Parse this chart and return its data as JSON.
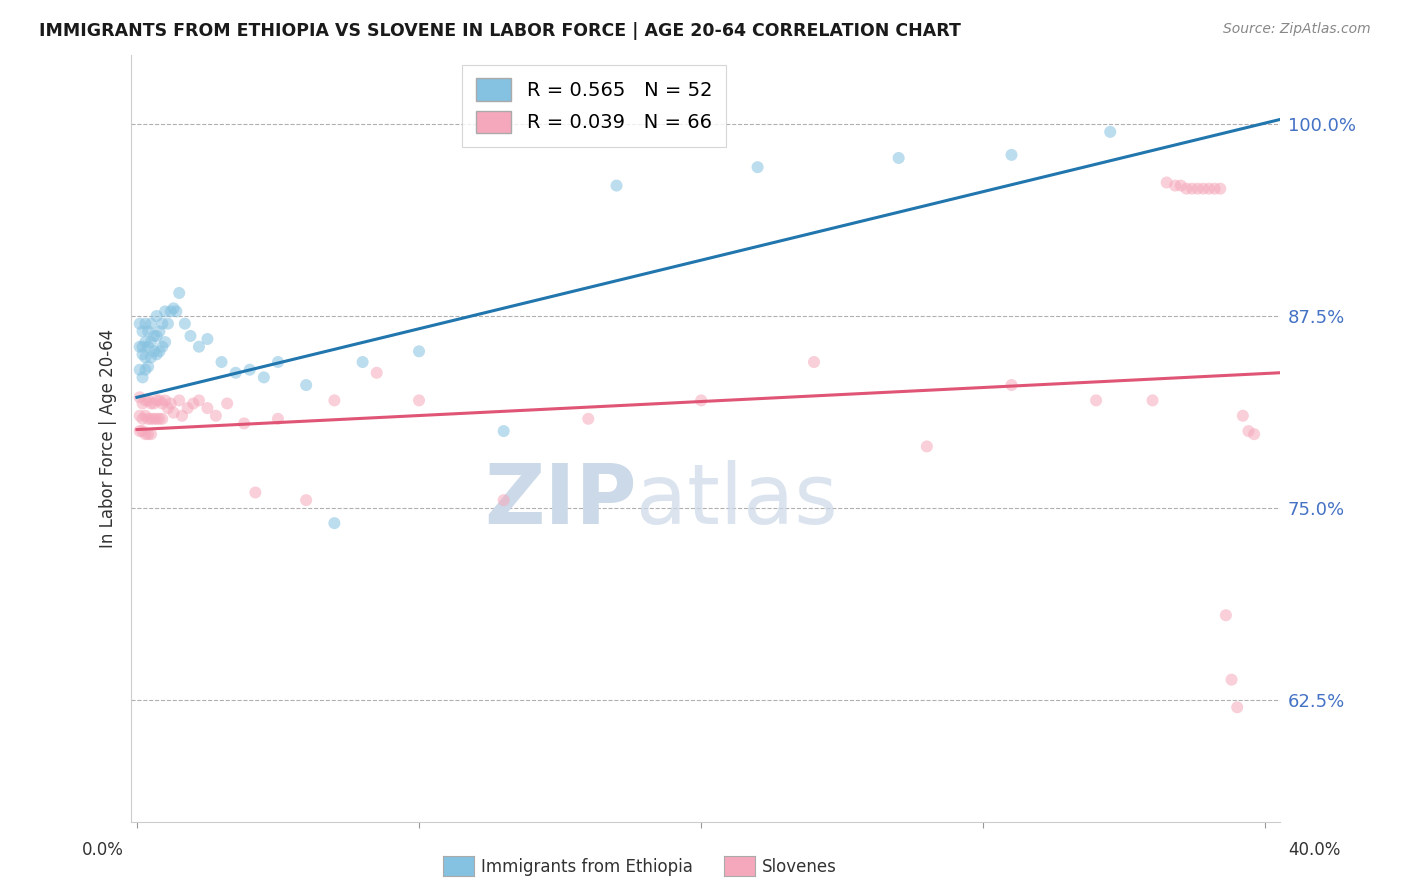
{
  "title": "IMMIGRANTS FROM ETHIOPIA VS SLOVENE IN LABOR FORCE | AGE 20-64 CORRELATION CHART",
  "source_text": "Source: ZipAtlas.com",
  "ylabel": "In Labor Force | Age 20-64",
  "ytick_labels": [
    "100.0%",
    "87.5%",
    "75.0%",
    "62.5%"
  ],
  "ytick_values": [
    1.0,
    0.875,
    0.75,
    0.625
  ],
  "ylim": [
    0.545,
    1.045
  ],
  "xlim": [
    -0.002,
    0.405
  ],
  "legend_r1": "R = 0.565",
  "legend_n1": "N = 52",
  "legend_r2": "R = 0.039",
  "legend_n2": "N = 66",
  "color_blue": "#85c1e0",
  "color_blue_line": "#2176ae",
  "color_pink": "#f5a8bb",
  "color_pink_line": "#e05575",
  "color_ytick": "#4472c4",
  "color_grid": "#b0b0b0",
  "watermark_color": "#ccd9e8",
  "marker_size": 75,
  "marker_alpha": 0.55,
  "line_width": 2.2,
  "blue_line_x0": 0.0,
  "blue_line_x1": 0.405,
  "blue_line_y0": 0.822,
  "blue_line_y1": 1.003,
  "pink_line_x0": 0.0,
  "pink_line_x1": 0.405,
  "pink_line_y0": 0.801,
  "pink_line_y1": 0.838,
  "scatter_blue_x": [
    0.001,
    0.001,
    0.001,
    0.002,
    0.002,
    0.002,
    0.002,
    0.003,
    0.003,
    0.003,
    0.003,
    0.004,
    0.004,
    0.004,
    0.005,
    0.005,
    0.005,
    0.006,
    0.006,
    0.007,
    0.007,
    0.007,
    0.008,
    0.008,
    0.009,
    0.009,
    0.01,
    0.01,
    0.011,
    0.012,
    0.013,
    0.014,
    0.015,
    0.017,
    0.019,
    0.022,
    0.025,
    0.03,
    0.035,
    0.04,
    0.045,
    0.05,
    0.06,
    0.07,
    0.08,
    0.1,
    0.13,
    0.17,
    0.22,
    0.27,
    0.31,
    0.345
  ],
  "scatter_blue_y": [
    0.84,
    0.855,
    0.87,
    0.835,
    0.85,
    0.855,
    0.865,
    0.84,
    0.848,
    0.858,
    0.87,
    0.842,
    0.855,
    0.865,
    0.848,
    0.858,
    0.87,
    0.852,
    0.862,
    0.85,
    0.862,
    0.875,
    0.852,
    0.865,
    0.855,
    0.87,
    0.858,
    0.878,
    0.87,
    0.878,
    0.88,
    0.878,
    0.89,
    0.87,
    0.862,
    0.855,
    0.86,
    0.845,
    0.838,
    0.84,
    0.835,
    0.845,
    0.83,
    0.74,
    0.845,
    0.852,
    0.8,
    0.96,
    0.972,
    0.978,
    0.98,
    0.995
  ],
  "scatter_pink_x": [
    0.001,
    0.001,
    0.001,
    0.002,
    0.002,
    0.002,
    0.003,
    0.003,
    0.003,
    0.004,
    0.004,
    0.004,
    0.005,
    0.005,
    0.005,
    0.006,
    0.006,
    0.007,
    0.007,
    0.008,
    0.008,
    0.009,
    0.009,
    0.01,
    0.011,
    0.012,
    0.013,
    0.015,
    0.016,
    0.018,
    0.02,
    0.022,
    0.025,
    0.028,
    0.032,
    0.038,
    0.042,
    0.05,
    0.06,
    0.07,
    0.085,
    0.1,
    0.13,
    0.16,
    0.2,
    0.24,
    0.28,
    0.31,
    0.34,
    0.36,
    0.365,
    0.368,
    0.37,
    0.372,
    0.374,
    0.376,
    0.378,
    0.38,
    0.382,
    0.384,
    0.386,
    0.388,
    0.39,
    0.392,
    0.394,
    0.396
  ],
  "scatter_pink_y": [
    0.822,
    0.81,
    0.8,
    0.818,
    0.808,
    0.8,
    0.82,
    0.81,
    0.798,
    0.82,
    0.808,
    0.798,
    0.818,
    0.808,
    0.798,
    0.818,
    0.808,
    0.82,
    0.808,
    0.82,
    0.808,
    0.818,
    0.808,
    0.82,
    0.815,
    0.818,
    0.812,
    0.82,
    0.81,
    0.815,
    0.818,
    0.82,
    0.815,
    0.81,
    0.818,
    0.805,
    0.76,
    0.808,
    0.755,
    0.82,
    0.838,
    0.82,
    0.755,
    0.808,
    0.82,
    0.845,
    0.79,
    0.83,
    0.82,
    0.82,
    0.962,
    0.96,
    0.96,
    0.958,
    0.958,
    0.958,
    0.958,
    0.958,
    0.958,
    0.958,
    0.68,
    0.638,
    0.62,
    0.81,
    0.8,
    0.798
  ]
}
